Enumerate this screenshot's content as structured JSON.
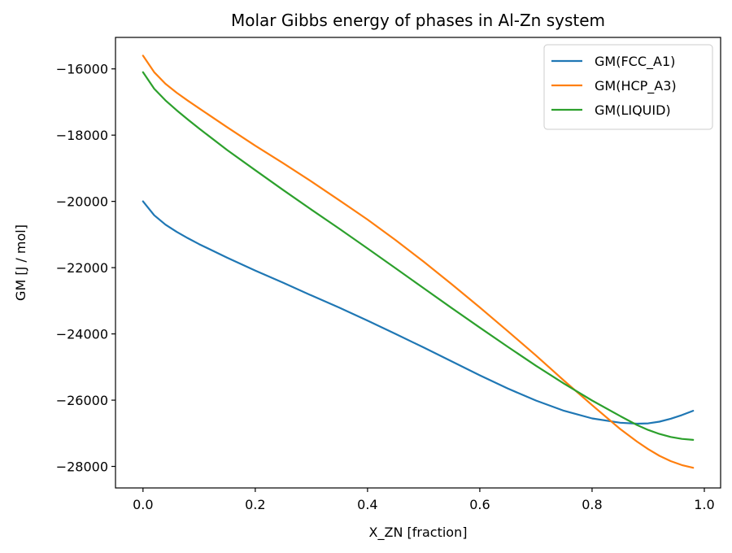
{
  "chart_data": {
    "type": "line",
    "title": "Molar Gibbs energy of phases in Al-Zn system",
    "xlabel": "X_ZN [fraction]",
    "ylabel": "GM [J / mol]",
    "xlim": [
      -0.049,
      1.029
    ],
    "ylim": [
      -28650,
      -15050
    ],
    "xticks": [
      0.0,
      0.2,
      0.4,
      0.6,
      0.8,
      1.0
    ],
    "xtick_labels": [
      "0.0",
      "0.2",
      "0.4",
      "0.6",
      "0.8",
      "1.0"
    ],
    "yticks": [
      -16000,
      -18000,
      -20000,
      -22000,
      -24000,
      -26000,
      -28000
    ],
    "ytick_labels": [
      "−16000",
      "−18000",
      "−20000",
      "−22000",
      "−24000",
      "−26000",
      "−28000"
    ],
    "grid": false,
    "legend_position": "top-right",
    "x": [
      0.0,
      0.02,
      0.04,
      0.06,
      0.08,
      0.1,
      0.15,
      0.2,
      0.25,
      0.3,
      0.35,
      0.4,
      0.45,
      0.5,
      0.55,
      0.6,
      0.65,
      0.7,
      0.75,
      0.8,
      0.85,
      0.88,
      0.9,
      0.92,
      0.94,
      0.96,
      0.98
    ],
    "series": [
      {
        "name": "GM(FCC_A1)",
        "color": "#1f77b4",
        "values": [
          -20000,
          -20420,
          -20700,
          -20920,
          -21110,
          -21290,
          -21700,
          -22090,
          -22460,
          -22840,
          -23210,
          -23600,
          -24000,
          -24410,
          -24830,
          -25250,
          -25650,
          -26010,
          -26320,
          -26550,
          -26680,
          -26710,
          -26700,
          -26650,
          -26560,
          -26450,
          -26320
        ]
      },
      {
        "name": "GM(HCP_A3)",
        "color": "#ff7f0e",
        "values": [
          -15600,
          -16100,
          -16450,
          -16720,
          -16960,
          -17190,
          -17760,
          -18320,
          -18850,
          -19400,
          -19970,
          -20550,
          -21170,
          -21820,
          -22500,
          -23200,
          -23920,
          -24650,
          -25410,
          -26150,
          -26870,
          -27250,
          -27480,
          -27680,
          -27840,
          -27960,
          -28040
        ]
      },
      {
        "name": "GM(LIQUID)",
        "color": "#2ca02c",
        "values": [
          -16100,
          -16600,
          -16950,
          -17250,
          -17530,
          -17800,
          -18450,
          -19060,
          -19660,
          -20250,
          -20830,
          -21420,
          -22020,
          -22620,
          -23220,
          -23810,
          -24390,
          -24960,
          -25500,
          -26010,
          -26480,
          -26750,
          -26900,
          -27020,
          -27110,
          -27170,
          -27200
        ]
      }
    ]
  }
}
